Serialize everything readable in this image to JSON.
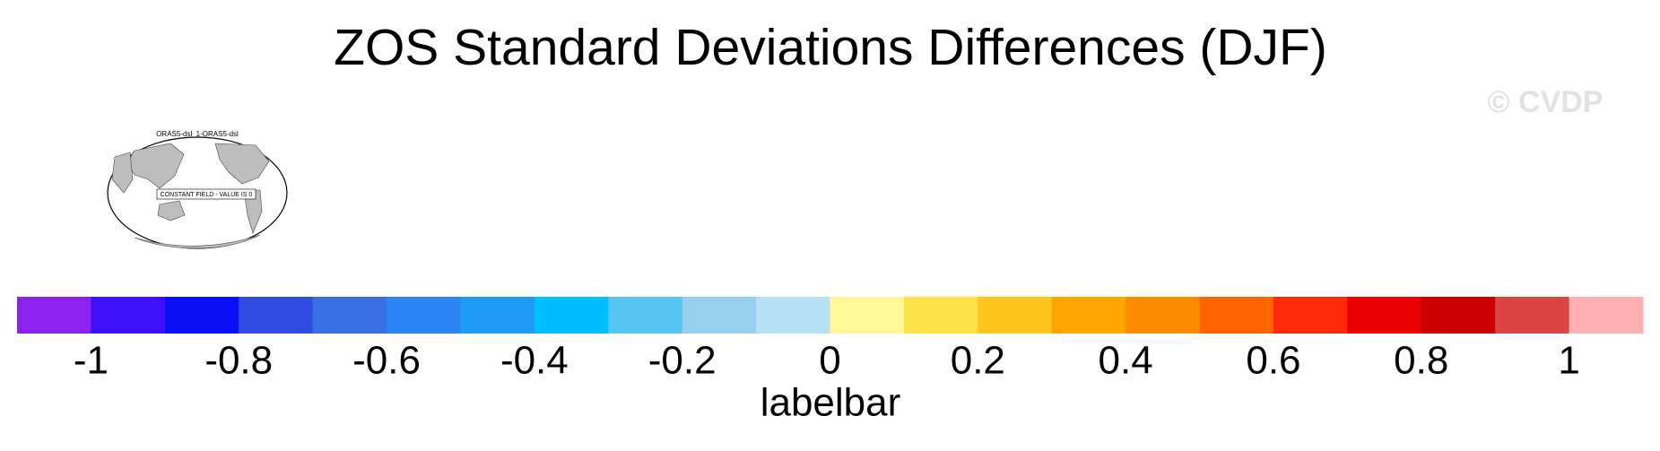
{
  "title": "ZOS Standard Deviations Differences (DJF)",
  "watermark": "© CVDP",
  "map_panel": {
    "title": "ORAS5-dsl_1-ORAS5-dsl",
    "note": "CONSTANT FIELD - VALUE IS 0"
  },
  "colorbar": {
    "label": "labelbar",
    "xlim": [
      -1.1,
      1.1
    ],
    "xticks": [
      -1,
      -0.8,
      -0.6,
      -0.4,
      -0.2,
      0,
      0.2,
      0.4,
      0.6,
      0.8,
      1
    ],
    "colors": [
      "#8B23F0",
      "#3D10F7",
      "#0A0FF5",
      "#2F4BE0",
      "#3A6EE5",
      "#2A85F5",
      "#1E9BF5",
      "#00BFFF",
      "#55C5F2",
      "#96D0EE",
      "#B8E0F5",
      "#FFF79A",
      "#FFE246",
      "#FFC41E",
      "#FFA500",
      "#FF8C00",
      "#FF6400",
      "#FF2A0A",
      "#EE0000",
      "#CC0000",
      "#DC4444",
      "#FFB0B0"
    ]
  }
}
